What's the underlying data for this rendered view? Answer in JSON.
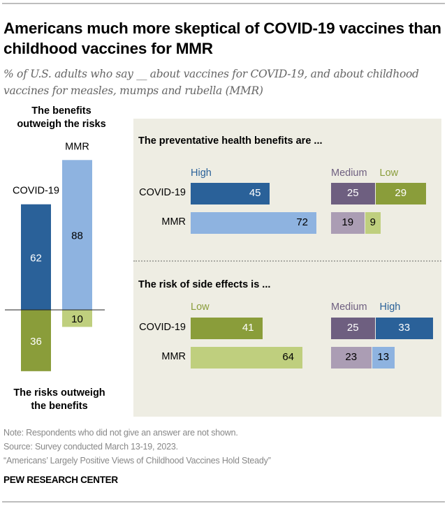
{
  "header": {
    "title": "Americans much more skeptical of COVID-19 vaccines than childhood vaccines for MMR",
    "subtitle": "% of U.S. adults who say __ about vaccines for COVID-19, and about childhood vaccines for measles, mumps and rubella (MMR)"
  },
  "colors": {
    "dark_blue": "#2a6199",
    "light_blue": "#8eb3e0",
    "dark_green": "#8a9d3a",
    "light_green": "#bfcf7e",
    "dark_purple": "#6e5f80",
    "light_purple": "#ab9db4",
    "panel_bg": "#eeede3"
  },
  "chart_data": [
    {
      "type": "bar",
      "title_top": "The benefits outweigh the risks",
      "title_bottom": "The risks outweigh the benefits",
      "categories": [
        "COVID-19",
        "MMR"
      ],
      "series": [
        {
          "name": "The benefits outweigh the risks",
          "values": [
            62,
            88
          ],
          "colors": [
            "#2a6199",
            "#8eb3e0"
          ],
          "label_colors": [
            "#ffffff",
            "#000000"
          ]
        },
        {
          "name": "The risks outweigh the benefits",
          "values": [
            36,
            10
          ],
          "colors": [
            "#8a9d3a",
            "#bfcf7e"
          ],
          "label_colors": [
            "#ffffff",
            "#000000"
          ]
        }
      ],
      "orientation": "vertical-diverging",
      "baseline": 0
    },
    {
      "type": "bar",
      "title": "The preventative health benefits are ...",
      "categories": [
        "COVID-19",
        "MMR"
      ],
      "series": [
        {
          "name": "High",
          "label_color": "#2a6199",
          "values": [
            45,
            72
          ],
          "colors": [
            "#2a6199",
            "#8eb3e0"
          ],
          "text_colors": [
            "#ffffff",
            "#000000"
          ],
          "group": "left"
        },
        {
          "name": "Medium",
          "label_color": "#6e5f80",
          "values": [
            25,
            19
          ],
          "colors": [
            "#6e5f80",
            "#ab9db4"
          ],
          "text_colors": [
            "#ffffff",
            "#000000"
          ],
          "group": "right"
        },
        {
          "name": "Low",
          "label_color": "#8a9d3a",
          "values": [
            29,
            9
          ],
          "colors": [
            "#8a9d3a",
            "#bfcf7e"
          ],
          "text_colors": [
            "#ffffff",
            "#000000"
          ],
          "group": "right"
        }
      ],
      "orientation": "horizontal"
    },
    {
      "type": "bar",
      "title": "The risk of side effects is ...",
      "categories": [
        "COVID-19",
        "MMR"
      ],
      "series": [
        {
          "name": "Low",
          "label_color": "#8a9d3a",
          "values": [
            41,
            64
          ],
          "colors": [
            "#8a9d3a",
            "#bfcf7e"
          ],
          "text_colors": [
            "#ffffff",
            "#000000"
          ],
          "group": "left"
        },
        {
          "name": "Medium",
          "label_color": "#6e5f80",
          "values": [
            25,
            23
          ],
          "colors": [
            "#6e5f80",
            "#ab9db4"
          ],
          "text_colors": [
            "#ffffff",
            "#000000"
          ],
          "group": "right"
        },
        {
          "name": "High",
          "label_color": "#2a6199",
          "values": [
            33,
            13
          ],
          "colors": [
            "#2a6199",
            "#8eb3e0"
          ],
          "text_colors": [
            "#ffffff",
            "#000000"
          ],
          "group": "right"
        }
      ],
      "orientation": "horizontal"
    }
  ],
  "footer": {
    "note": "Note: Respondents who did not give an answer are not shown.",
    "source": "Source: Survey conducted March 13-19, 2023.",
    "report": "“Americans’ Largely Positive Views of Childhood Vaccines Hold Steady”",
    "brand": "PEW RESEARCH CENTER"
  }
}
